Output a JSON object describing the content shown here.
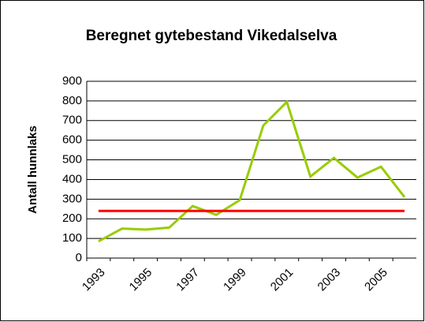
{
  "chart_data": {
    "type": "line",
    "title": "Beregnet gytebestand Vikedalselva",
    "y_label": "Antall hunnlaks",
    "categories": [
      "1993",
      null,
      "1995",
      null,
      "1997",
      null,
      "1999",
      null,
      "2001",
      null,
      "2003",
      null,
      "2005",
      null
    ],
    "series": [
      {
        "color": "#99cc00",
        "values": [
          85,
          150,
          145,
          155,
          265,
          220,
          295,
          675,
          795,
          415,
          510,
          410,
          465,
          310
        ]
      },
      {
        "color": "#ff0000",
        "values": [
          240,
          240,
          240,
          240,
          240,
          240,
          240,
          240,
          240,
          240,
          240,
          240,
          240,
          240
        ]
      }
    ],
    "ylim": [
      0,
      900
    ],
    "yticks": [
      0,
      100,
      200,
      300,
      400,
      500,
      600,
      700,
      800,
      900
    ],
    "grid": true
  }
}
